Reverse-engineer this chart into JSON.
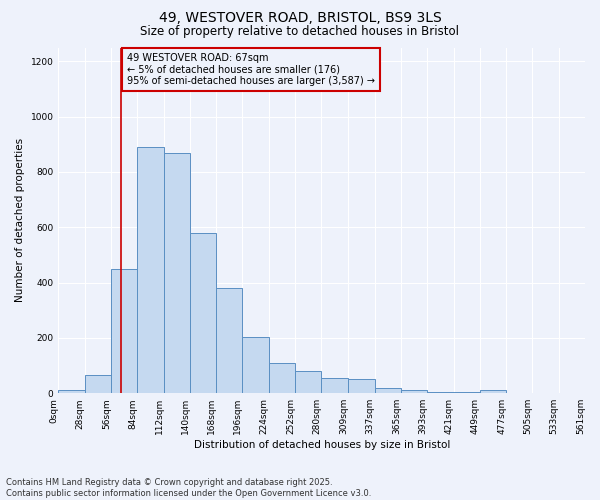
{
  "title_line1": "49, WESTOVER ROAD, BRISTOL, BS9 3LS",
  "title_line2": "Size of property relative to detached houses in Bristol",
  "xlabel": "Distribution of detached houses by size in Bristol",
  "ylabel": "Number of detached properties",
  "annotation_line1": "49 WESTOVER ROAD: 67sqm",
  "annotation_line2": "← 5% of detached houses are smaller (176)",
  "annotation_line3": "95% of semi-detached houses are larger (3,587) →",
  "property_size": 67,
  "red_line_x": 67,
  "bar_bins": [
    0,
    28,
    56,
    84,
    112,
    140,
    168,
    196,
    224,
    252,
    280,
    309,
    337,
    365,
    393,
    421,
    449,
    477,
    505,
    533,
    561
  ],
  "bar_heights": [
    10,
    65,
    450,
    890,
    870,
    580,
    380,
    205,
    110,
    80,
    55,
    50,
    20,
    12,
    5,
    5,
    12,
    2,
    2,
    2
  ],
  "bar_color": "#c5d9f0",
  "bar_edge_color": "#5a8fc3",
  "red_line_color": "#cc0000",
  "background_color": "#eef2fb",
  "grid_color": "#ffffff",
  "annotation_box_edge": "#cc0000",
  "footer_line1": "Contains HM Land Registry data © Crown copyright and database right 2025.",
  "footer_line2": "Contains public sector information licensed under the Open Government Licence v3.0.",
  "ylim": [
    0,
    1250
  ],
  "yticks": [
    0,
    200,
    400,
    600,
    800,
    1000,
    1200
  ],
  "title_fontsize": 10,
  "subtitle_fontsize": 8.5,
  "axis_label_fontsize": 7.5,
  "tick_fontsize": 6.5,
  "annotation_fontsize": 7,
  "footer_fontsize": 6
}
